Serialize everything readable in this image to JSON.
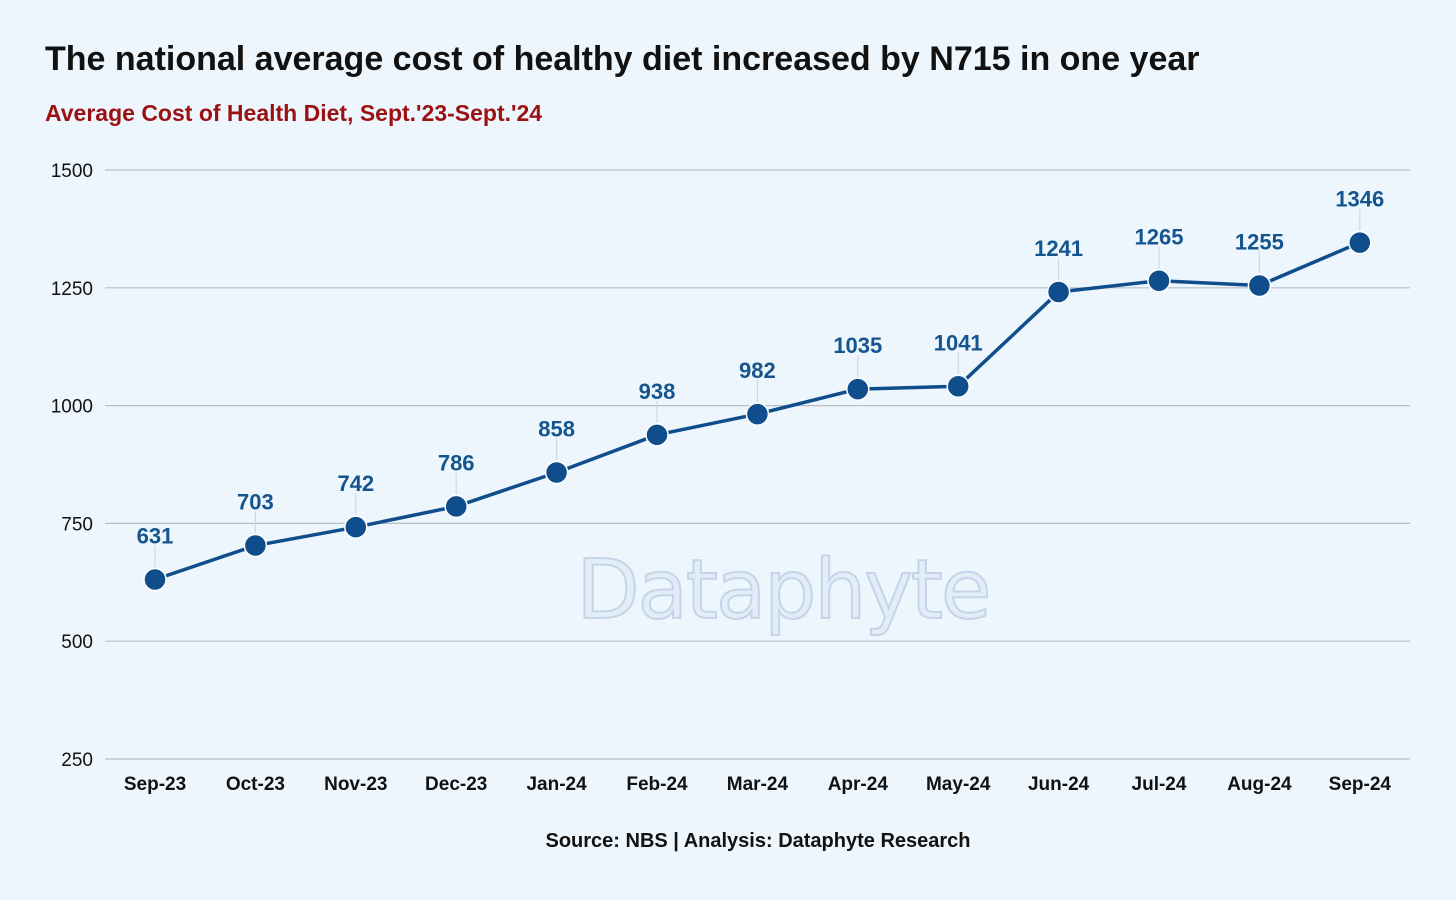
{
  "header": {
    "title": "The national average cost of healthy diet increased by N715 in one year",
    "subtitle": "Average Cost of Health Diet, Sept.'23-Sept.'24"
  },
  "footer": {
    "source": "Source: NBS | Analysis: Dataphyte Research"
  },
  "watermark": {
    "text": "Dataphyte"
  },
  "colors": {
    "background": "#eef6fd",
    "line": "#0f4d8c",
    "label": "#14558f",
    "grid": "#b8bec6",
    "subtitle": "#9b1111"
  },
  "chart_data": {
    "type": "line",
    "title": "The national average cost of healthy diet increased by N715 in one year",
    "subtitle": "Average Cost of Health Diet, Sept.'23-Sept.'24",
    "categories": [
      "Sep-23",
      "Oct-23",
      "Nov-23",
      "Dec-23",
      "Jan-24",
      "Feb-24",
      "Mar-24",
      "Apr-24",
      "May-24",
      "Jun-24",
      "Jul-24",
      "Aug-24",
      "Sep-24"
    ],
    "values": [
      631,
      703,
      742,
      786,
      858,
      938,
      982,
      1035,
      1041,
      1241,
      1265,
      1255,
      1346
    ],
    "ylim": [
      250,
      1500
    ],
    "yticks": [
      250,
      500,
      750,
      1000,
      1250,
      1500
    ],
    "grid": true,
    "data_labels": true,
    "xlabel": "",
    "ylabel": ""
  }
}
